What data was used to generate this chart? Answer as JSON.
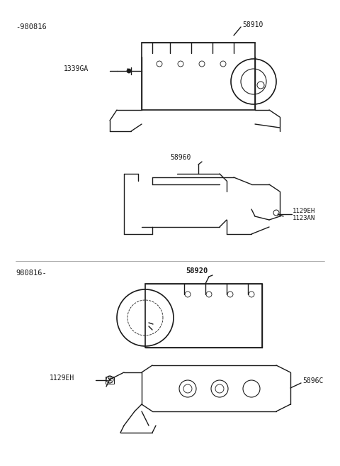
{
  "bg_color": "#ffffff",
  "line_color": "#1a1a1a",
  "text_color": "#1a1a1a",
  "figsize": [
    4.8,
    6.57
  ],
  "dpi": 100,
  "labels": {
    "top_date": "-980816",
    "bottom_date": "980816-",
    "part_58910": "58910",
    "part_1339GA": "1339GA",
    "part_58960": "58960",
    "part_1129EH_1": "1129EH",
    "part_1123AN": "1123AN",
    "part_58920": "58920",
    "part_58960b": "5896C",
    "part_1129EH_2": "1129EH"
  }
}
